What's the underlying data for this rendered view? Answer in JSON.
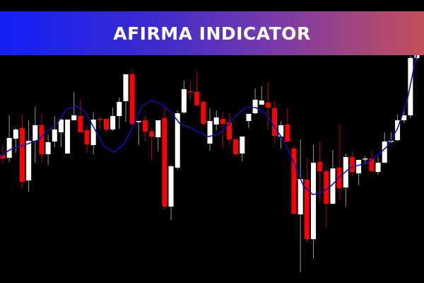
{
  "banner": {
    "title": "AFIRMA INDICATOR"
  },
  "colors": {
    "background": "#000000",
    "bull": "#ffffff",
    "bear": "#ff0000",
    "bull_wick": "#9a9a9a",
    "bear_wick": "#b00000",
    "afirma_line": "#1010b0"
  },
  "chart_data": {
    "type": "candlestick",
    "title": "",
    "xlabel": "",
    "ylabel": "",
    "ylim": [
      0,
      400
    ],
    "grid": false,
    "candles": [
      {
        "o": 181,
        "h": 196,
        "l": 169,
        "c": 176
      },
      {
        "o": 177,
        "h": 237,
        "l": 171,
        "c": 205
      },
      {
        "o": 204,
        "h": 219,
        "l": 184,
        "c": 217
      },
      {
        "o": 219,
        "h": 239,
        "l": 133,
        "c": 143
      },
      {
        "o": 145,
        "h": 230,
        "l": 129,
        "c": 201
      },
      {
        "o": 201,
        "h": 249,
        "l": 170,
        "c": 223
      },
      {
        "o": 223,
        "h": 238,
        "l": 170,
        "c": 182
      },
      {
        "o": 182,
        "h": 210,
        "l": 167,
        "c": 199
      },
      {
        "o": 200,
        "h": 236,
        "l": 192,
        "c": 217
      },
      {
        "o": 213,
        "h": 234,
        "l": 192,
        "c": 231
      },
      {
        "o": 183,
        "h": 231,
        "l": 183,
        "c": 231
      },
      {
        "o": 230,
        "h": 270,
        "l": 230,
        "c": 237
      },
      {
        "o": 236,
        "h": 260,
        "l": 213,
        "c": 213
      },
      {
        "o": 216,
        "h": 223,
        "l": 184,
        "c": 196
      },
      {
        "o": 195,
        "h": 241,
        "l": 182,
        "c": 231
      },
      {
        "o": 232,
        "h": 236,
        "l": 218,
        "c": 231
      },
      {
        "o": 232,
        "h": 232,
        "l": 212,
        "c": 217
      },
      {
        "o": 217,
        "h": 248,
        "l": 215,
        "c": 236
      },
      {
        "o": 236,
        "h": 262,
        "l": 218,
        "c": 256
      },
      {
        "o": 257,
        "h": 295,
        "l": 228,
        "c": 295
      },
      {
        "o": 295,
        "h": 303,
        "l": 222,
        "c": 225
      },
      {
        "o": 228,
        "h": 229,
        "l": 195,
        "c": 229
      },
      {
        "o": 230,
        "h": 236,
        "l": 200,
        "c": 214
      },
      {
        "o": 214,
        "h": 219,
        "l": 174,
        "c": 207
      },
      {
        "o": 206,
        "h": 230,
        "l": 186,
        "c": 230
      },
      {
        "o": 233,
        "h": 248,
        "l": 104,
        "c": 108
      },
      {
        "o": 108,
        "h": 167,
        "l": 89,
        "c": 165
      },
      {
        "o": 163,
        "h": 244,
        "l": 160,
        "c": 240
      },
      {
        "o": 241,
        "h": 286,
        "l": 239,
        "c": 274
      },
      {
        "o": 271,
        "h": 287,
        "l": 259,
        "c": 270
      },
      {
        "o": 270,
        "h": 300,
        "l": 250,
        "c": 251
      },
      {
        "o": 256,
        "h": 260,
        "l": 225,
        "c": 225
      },
      {
        "o": 197,
        "h": 247,
        "l": 187,
        "c": 229
      },
      {
        "o": 224,
        "h": 244,
        "l": 216,
        "c": 234
      },
      {
        "o": 232,
        "h": 242,
        "l": 190,
        "c": 225
      },
      {
        "o": 227,
        "h": 239,
        "l": 195,
        "c": 203
      },
      {
        "o": 203,
        "h": 203,
        "l": 179,
        "c": 182
      },
      {
        "o": 183,
        "h": 207,
        "l": 172,
        "c": 207
      },
      {
        "o": 229,
        "h": 239,
        "l": 219,
        "c": 239
      },
      {
        "o": 240,
        "h": 275,
        "l": 238,
        "c": 259
      },
      {
        "o": 252,
        "h": 278,
        "l": 252,
        "c": 258
      },
      {
        "o": 255,
        "h": 284,
        "l": 217,
        "c": 248
      },
      {
        "o": 247,
        "h": 258,
        "l": 197,
        "c": 208
      },
      {
        "o": 207,
        "h": 229,
        "l": 190,
        "c": 223
      },
      {
        "o": 224,
        "h": 248,
        "l": 199,
        "c": 200
      },
      {
        "o": 190,
        "h": 195,
        "l": 97,
        "c": 98
      },
      {
        "o": 97,
        "h": 203,
        "l": 15,
        "c": 147
      },
      {
        "o": 146,
        "h": 177,
        "l": 58,
        "c": 62
      },
      {
        "o": 62,
        "h": 195,
        "l": 35,
        "c": 170
      },
      {
        "o": 171,
        "h": 200,
        "l": 115,
        "c": 158
      },
      {
        "o": 158,
        "h": 165,
        "l": 77,
        "c": 112
      },
      {
        "o": 112,
        "h": 188,
        "l": 112,
        "c": 162
      },
      {
        "o": 163,
        "h": 225,
        "l": 117,
        "c": 134
      },
      {
        "o": 135,
        "h": 183,
        "l": 108,
        "c": 178
      },
      {
        "o": 178,
        "h": 187,
        "l": 152,
        "c": 157
      },
      {
        "o": 155,
        "h": 174,
        "l": 138,
        "c": 174
      },
      {
        "o": 176,
        "h": 180,
        "l": 168,
        "c": 176
      },
      {
        "o": 176,
        "h": 188,
        "l": 158,
        "c": 158
      },
      {
        "o": 157,
        "h": 178,
        "l": 153,
        "c": 170
      },
      {
        "o": 170,
        "h": 213,
        "l": 170,
        "c": 200
      },
      {
        "o": 200,
        "h": 213,
        "l": 198,
        "c": 201
      },
      {
        "o": 202,
        "h": 238,
        "l": 200,
        "c": 230
      },
      {
        "o": 230,
        "h": 247,
        "l": 226,
        "c": 237
      },
      {
        "o": 237,
        "h": 321,
        "l": 233,
        "c": 318
      },
      {
        "o": 318,
        "h": 322,
        "l": 315,
        "c": 322
      }
    ],
    "afirma": [
      178,
      188,
      193,
      197,
      202,
      215,
      225,
      245,
      250,
      242,
      217,
      193,
      185,
      195,
      220,
      250,
      258,
      253,
      242,
      225,
      220,
      213,
      207,
      210,
      222,
      238,
      248,
      248,
      240,
      220,
      200,
      170,
      138,
      125,
      128,
      138,
      152,
      163,
      167,
      172,
      182,
      195,
      220,
      260,
      325
    ]
  }
}
